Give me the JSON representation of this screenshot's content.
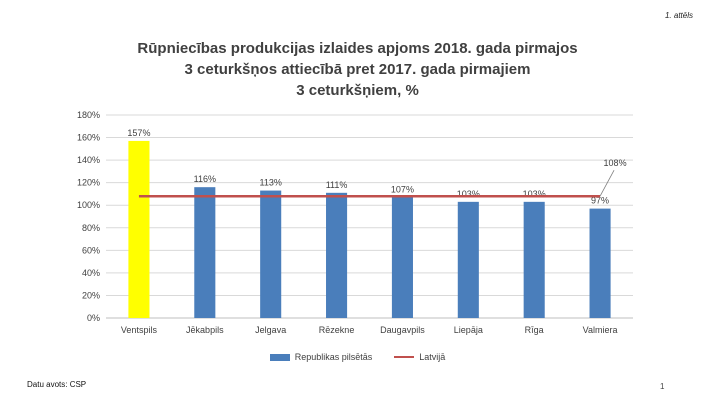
{
  "figure_label": "1. attēls",
  "title_lines": [
    "Rūpniecības produkcijas izlaides apjoms 2018. gada pirmajos",
    "3 ceturkšņos attiecībā pret 2017. gada pirmajiem",
    "3 ceturkšņiem, %"
  ],
  "source": "Datu avots: CSP",
  "page_number": "1",
  "colors": {
    "bar": "#4a7ebb",
    "highlight_bar": "#ffff00",
    "line": "#c0504d",
    "grid": "#d9d9d9",
    "text": "#404040"
  },
  "chart_data": {
    "type": "bar",
    "categories": [
      "Ventspils",
      "Jēkabpils",
      "Jelgava",
      "Rēzekne",
      "Daugavpils",
      "Liepāja",
      "Rīga",
      "Valmiera"
    ],
    "series": [
      {
        "name": "Republikas pilsētās",
        "values": [
          157,
          116,
          113,
          111,
          107,
          103,
          103,
          97
        ],
        "labels": [
          "157%",
          "116%",
          "113%",
          "111%",
          "107%",
          "103%",
          "103%",
          "97%"
        ]
      },
      {
        "name": "Latvijā",
        "type": "line",
        "value": 108,
        "label": "108%"
      }
    ],
    "highlighted_category": "Ventspils",
    "y_ticks": [
      "0%",
      "20%",
      "40%",
      "60%",
      "80%",
      "100%",
      "120%",
      "140%",
      "160%",
      "180%"
    ],
    "ylim": [
      0,
      180
    ],
    "grid": true,
    "legend": "bottom"
  }
}
